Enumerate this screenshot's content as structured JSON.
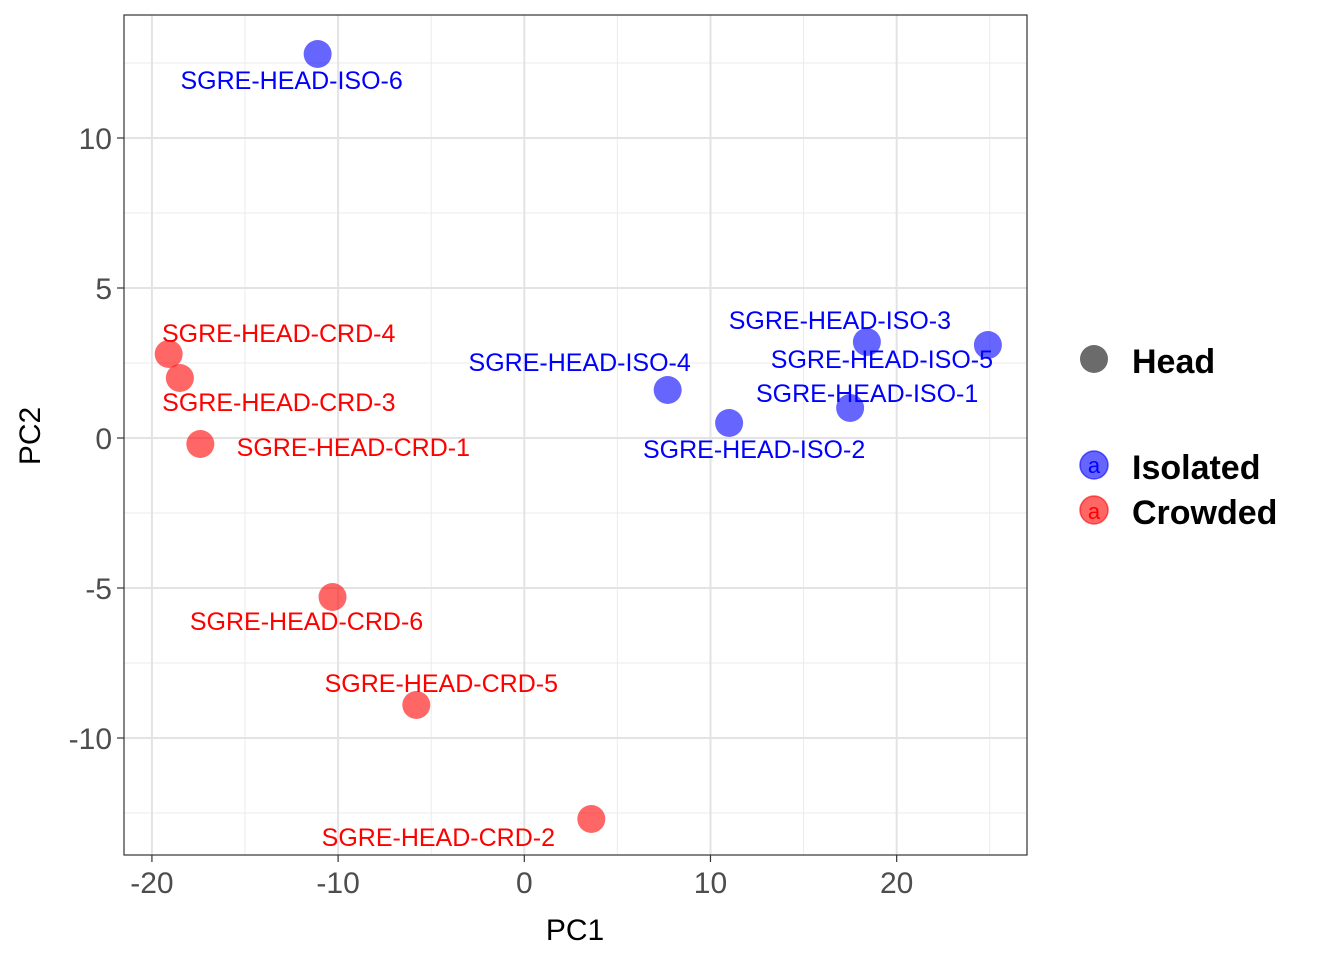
{
  "chart_data": {
    "type": "scatter",
    "xlabel": "PC1",
    "ylabel": "PC2",
    "xlim": [
      -21.5,
      27
    ],
    "ylim": [
      -13.9,
      14.1
    ],
    "x_ticks": [
      -20,
      -10,
      0,
      10,
      20
    ],
    "x_tick_labels": [
      "-20",
      "-10",
      "0",
      "10",
      "20"
    ],
    "y_ticks": [
      -10,
      -5,
      0,
      5,
      10
    ],
    "y_tick_labels": [
      "-10",
      "-5",
      "0",
      "5",
      "10"
    ],
    "grid": true,
    "legend_position": "right",
    "colors": {
      "Isolated": "#0000ff",
      "Crowded": "#ff0000"
    },
    "legend": {
      "shape_title": "Head",
      "items": [
        {
          "label": "Isolated",
          "color": "#0000ff",
          "key_text": "a"
        },
        {
          "label": "Crowded",
          "color": "#ff0000",
          "key_text": "a"
        }
      ]
    },
    "points": [
      {
        "label": "SGRE-HEAD-ISO-6",
        "group": "Isolated",
        "x": -11.1,
        "y": 12.8
      },
      {
        "label": "SGRE-HEAD-ISO-3",
        "group": "Isolated",
        "x": 18.4,
        "y": 3.2
      },
      {
        "label": "SGRE-HEAD-ISO-5",
        "group": "Isolated",
        "x": 24.9,
        "y": 3.1
      },
      {
        "label": "SGRE-HEAD-ISO-4",
        "group": "Isolated",
        "x": 7.7,
        "y": 1.6
      },
      {
        "label": "SGRE-HEAD-ISO-1",
        "group": "Isolated",
        "x": 17.5,
        "y": 1.0
      },
      {
        "label": "SGRE-HEAD-ISO-2",
        "group": "Isolated",
        "x": 11.0,
        "y": 0.5
      },
      {
        "label": "SGRE-HEAD-CRD-4",
        "group": "Crowded",
        "x": -19.1,
        "y": 2.8
      },
      {
        "label": "SGRE-HEAD-CRD-3",
        "group": "Crowded",
        "x": -18.5,
        "y": 2.0
      },
      {
        "label": "SGRE-HEAD-CRD-1",
        "group": "Crowded",
        "x": -17.4,
        "y": -0.2
      },
      {
        "label": "SGRE-HEAD-CRD-6",
        "group": "Crowded",
        "x": -10.3,
        "y": -5.3
      },
      {
        "label": "SGRE-HEAD-CRD-5",
        "group": "Crowded",
        "x": -5.8,
        "y": -8.9
      },
      {
        "label": "SGRE-HEAD-CRD-2",
        "group": "Crowded",
        "x": 3.6,
        "y": -12.7
      }
    ]
  }
}
